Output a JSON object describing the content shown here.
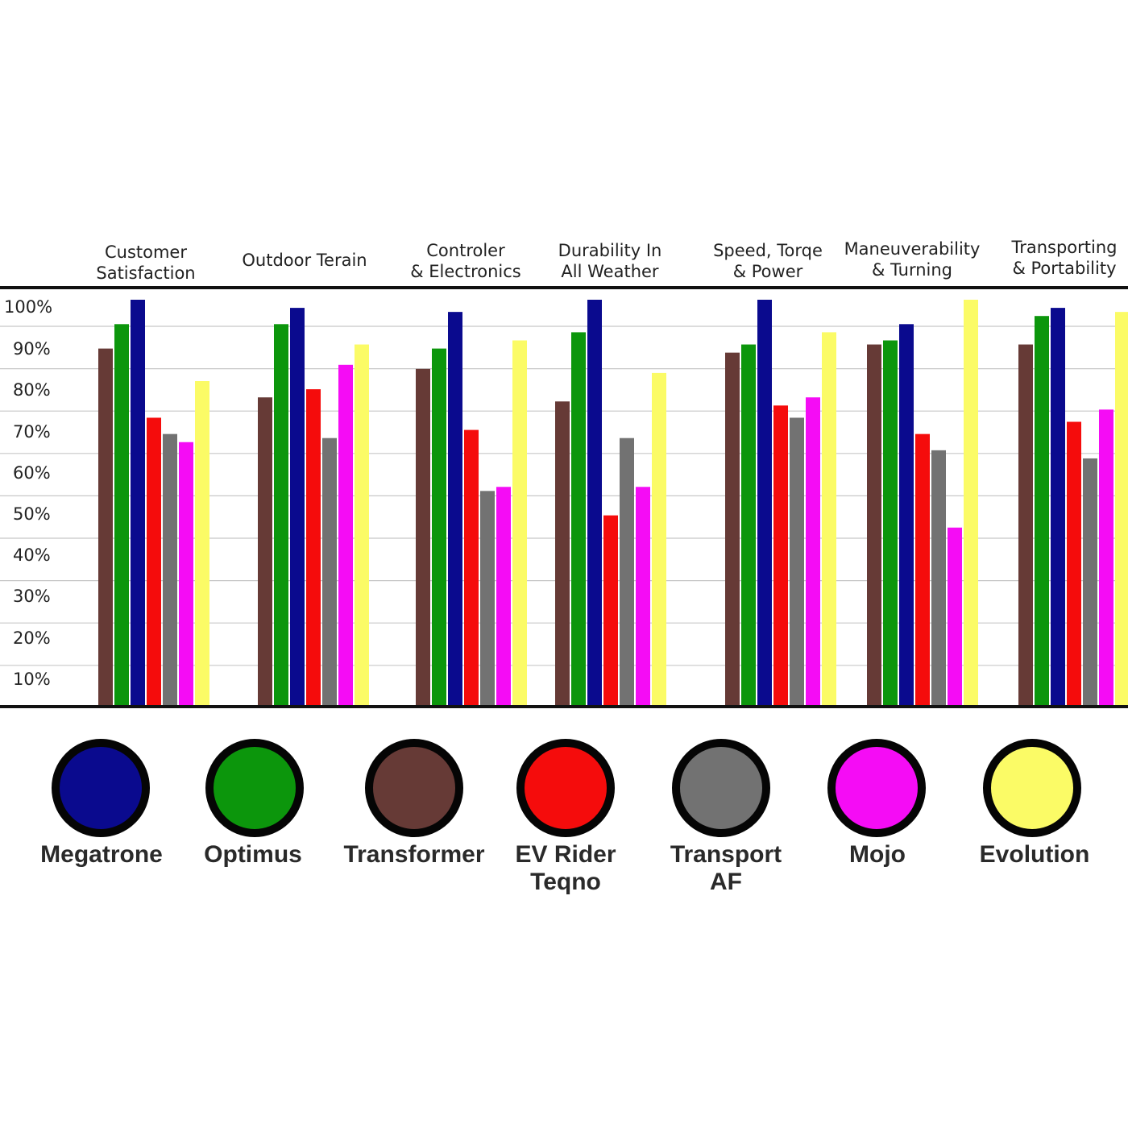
{
  "chart_data": {
    "type": "bar",
    "categories": [
      [
        "Customer",
        "Satisfaction"
      ],
      [
        "Outdoor Terain"
      ],
      [
        "Controler",
        "& Electronics"
      ],
      [
        "Durability In",
        "All Weather"
      ],
      [
        "Speed, Torqe",
        "& Power"
      ],
      [
        "Maneuverability",
        "& Turning"
      ],
      [
        "Transporting",
        "& Portability"
      ]
    ],
    "y_ticks": [
      "100%",
      "90%",
      "80%",
      "70%",
      "60%",
      "50%",
      "40%",
      "30%",
      "20%",
      "10%"
    ],
    "ylim": [
      0,
      100
    ],
    "series": [
      {
        "name": "Transformer",
        "color": "#663a36",
        "values": [
          88,
          76,
          83,
          75,
          87,
          89,
          89
        ]
      },
      {
        "name": "Optimus",
        "color": "#0c960c",
        "values": [
          94,
          94,
          88,
          92,
          89,
          90,
          96
        ]
      },
      {
        "name": "Megatrone",
        "color": "#0a0a8e",
        "values": [
          100,
          98,
          97,
          100,
          100,
          94,
          98
        ]
      },
      {
        "name": "EV Rider Teqno",
        "color": "#f50c0c",
        "values": [
          71,
          78,
          68,
          47,
          74,
          67,
          70
        ]
      },
      {
        "name": "Transport AF",
        "color": "#727272",
        "values": [
          67,
          66,
          53,
          66,
          71,
          63,
          61
        ]
      },
      {
        "name": "Mojo",
        "color": "#f50cf5",
        "values": [
          65,
          84,
          54,
          54,
          76,
          44,
          73
        ]
      },
      {
        "name": "Evolution",
        "color": "#fbfb66",
        "values": [
          80,
          89,
          90,
          82,
          92,
          100,
          97
        ]
      }
    ],
    "legend": [
      {
        "label_lines": [
          "Megatrone"
        ],
        "color": "#0a0a8e"
      },
      {
        "label_lines": [
          "Optimus"
        ],
        "color": "#0c960c"
      },
      {
        "label_lines": [
          "Transformer"
        ],
        "color": "#663a36"
      },
      {
        "label_lines": [
          "EV Rider",
          "Teqno"
        ],
        "color": "#f50c0c"
      },
      {
        "label_lines": [
          "Transport",
          "AF"
        ],
        "color": "#727272"
      },
      {
        "label_lines": [
          "Mojo"
        ],
        "color": "#f50cf5"
      },
      {
        "label_lines": [
          "Evolution"
        ],
        "color": "#fbfb66"
      }
    ],
    "legend_placement": "bottom",
    "grid": true
  }
}
